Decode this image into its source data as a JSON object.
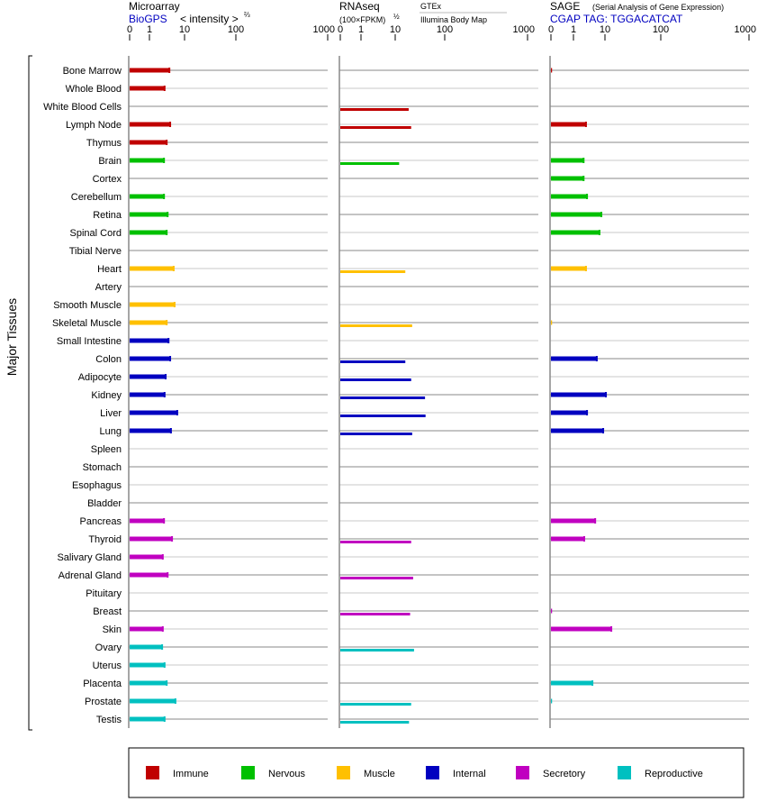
{
  "chart_data": {
    "type": "bar",
    "orientation": "horizontal",
    "ylabel": "Major Tissues",
    "panels": [
      {
        "id": "microarray",
        "title": "Microarray",
        "source": "BioGPS",
        "unit": "< intensity >",
        "unit_sup": "⅔",
        "ticks": [
          0,
          1,
          10,
          100,
          1000
        ],
        "xlim": [
          0,
          1000
        ]
      },
      {
        "id": "rnaseq",
        "title": "RNAseq",
        "unit": "(100×FPKM)",
        "unit_sup": "½",
        "source_top": "GTEx",
        "source_bottom": "Illumina Body Map",
        "ticks": [
          0,
          1,
          10,
          100,
          1000
        ],
        "xlim": [
          0,
          1000
        ]
      },
      {
        "id": "sage",
        "title": "SAGE",
        "subtitle": "(Serial Analysis of Gene Expression)",
        "source": "CGAP TAG: TGGACATCAT",
        "ticks": [
          0,
          1,
          10,
          100,
          1000
        ],
        "xlim": [
          0,
          1000
        ]
      }
    ],
    "groups": [
      {
        "name": "Immune",
        "color": "#c00000"
      },
      {
        "name": "Nervous",
        "color": "#00c000"
      },
      {
        "name": "Muscle",
        "color": "#ffc000"
      },
      {
        "name": "Internal",
        "color": "#0000c0"
      },
      {
        "name": "Secretory",
        "color": "#c000c0"
      },
      {
        "name": "Reproductive",
        "color": "#00c0c0"
      }
    ],
    "legend_position": "bottom",
    "tissues": [
      {
        "name": "Bone Marrow",
        "group": 0,
        "microarray": 3.7,
        "rnaseq": null,
        "sage": 0.05
      },
      {
        "name": "Whole Blood",
        "group": 0,
        "microarray": 2.7,
        "rnaseq": null,
        "sage": null
      },
      {
        "name": "White Blood Cells",
        "group": 0,
        "microarray": null,
        "rnaseq": 18.7,
        "sage": null
      },
      {
        "name": "Lymph Node",
        "group": 0,
        "microarray": 3.9,
        "rnaseq": 21,
        "sage": 2.5
      },
      {
        "name": "Thymus",
        "group": 0,
        "microarray": 3.1,
        "rnaseq": null,
        "sage": null
      },
      {
        "name": "Brain",
        "group": 1,
        "microarray": 2.6,
        "rnaseq": 12,
        "sage": 2.1
      },
      {
        "name": "Cortex",
        "group": 1,
        "microarray": null,
        "rnaseq": null,
        "sage": 2.1
      },
      {
        "name": "Cerebellum",
        "group": 1,
        "microarray": 2.6,
        "rnaseq": null,
        "sage": 2.7
      },
      {
        "name": "Retina",
        "group": 1,
        "microarray": 3.3,
        "rnaseq": null,
        "sage": 7.7
      },
      {
        "name": "Spinal Cord",
        "group": 1,
        "microarray": 3.1,
        "rnaseq": null,
        "sage": 6.7
      },
      {
        "name": "Tibial Nerve",
        "group": 1,
        "microarray": null,
        "rnaseq": null,
        "sage": null
      },
      {
        "name": "Heart",
        "group": 2,
        "microarray": 4.9,
        "rnaseq": 16,
        "sage": 2.5
      },
      {
        "name": "Artery",
        "group": 2,
        "microarray": null,
        "rnaseq": null,
        "sage": null
      },
      {
        "name": "Smooth Muscle",
        "group": 2,
        "microarray": 5.2,
        "rnaseq": null,
        "sage": null
      },
      {
        "name": "Skeletal Muscle",
        "group": 2,
        "microarray": 3.1,
        "rnaseq": 22,
        "sage": 0.05
      },
      {
        "name": "Small Intestine",
        "group": 3,
        "microarray": 3.5,
        "rnaseq": null,
        "sage": null
      },
      {
        "name": "Colon",
        "group": 3,
        "microarray": 3.9,
        "rnaseq": 16,
        "sage": 5.5
      },
      {
        "name": "Adipocyte",
        "group": 3,
        "microarray": 2.9,
        "rnaseq": 21,
        "sage": null
      },
      {
        "name": "Kidney",
        "group": 3,
        "microarray": 2.7,
        "rnaseq": 40,
        "sage": 10.4
      },
      {
        "name": "Liver",
        "group": 3,
        "microarray": 6.2,
        "rnaseq": 41,
        "sage": 2.7
      },
      {
        "name": "Lung",
        "group": 3,
        "microarray": 4.1,
        "rnaseq": 22,
        "sage": 8.8
      },
      {
        "name": "Spleen",
        "group": 3,
        "microarray": null,
        "rnaseq": null,
        "sage": null
      },
      {
        "name": "Stomach",
        "group": 3,
        "microarray": null,
        "rnaseq": null,
        "sage": null
      },
      {
        "name": "Esophagus",
        "group": 3,
        "microarray": null,
        "rnaseq": null,
        "sage": null
      },
      {
        "name": "Bladder",
        "group": 3,
        "microarray": null,
        "rnaseq": null,
        "sage": null
      },
      {
        "name": "Pancreas",
        "group": 4,
        "microarray": 2.6,
        "rnaseq": null,
        "sage": 4.9
      },
      {
        "name": "Thyroid",
        "group": 4,
        "microarray": 4.4,
        "rnaseq": 21,
        "sage": 2.2
      },
      {
        "name": "Salivary Gland",
        "group": 4,
        "microarray": 2.4,
        "rnaseq": null,
        "sage": null
      },
      {
        "name": "Adrenal Gland",
        "group": 4,
        "microarray": 3.3,
        "rnaseq": 23,
        "sage": null
      },
      {
        "name": "Pituitary",
        "group": 4,
        "microarray": null,
        "rnaseq": null,
        "sage": null
      },
      {
        "name": "Breast",
        "group": 4,
        "microarray": null,
        "rnaseq": 20,
        "sage": 0.05
      },
      {
        "name": "Skin",
        "group": 4,
        "microarray": 2.4,
        "rnaseq": null,
        "sage": 13
      },
      {
        "name": "Ovary",
        "group": 5,
        "microarray": 2.3,
        "rnaseq": 24,
        "sage": null
      },
      {
        "name": "Uterus",
        "group": 5,
        "microarray": 2.7,
        "rnaseq": null,
        "sage": null
      },
      {
        "name": "Placenta",
        "group": 5,
        "microarray": 3.1,
        "rnaseq": null,
        "sage": 4.0
      },
      {
        "name": "Prostate",
        "group": 5,
        "microarray": 5.5,
        "rnaseq": 21,
        "sage": 0.05
      },
      {
        "name": "Testis",
        "group": 5,
        "microarray": 2.7,
        "rnaseq": 19,
        "sage": null
      }
    ]
  }
}
